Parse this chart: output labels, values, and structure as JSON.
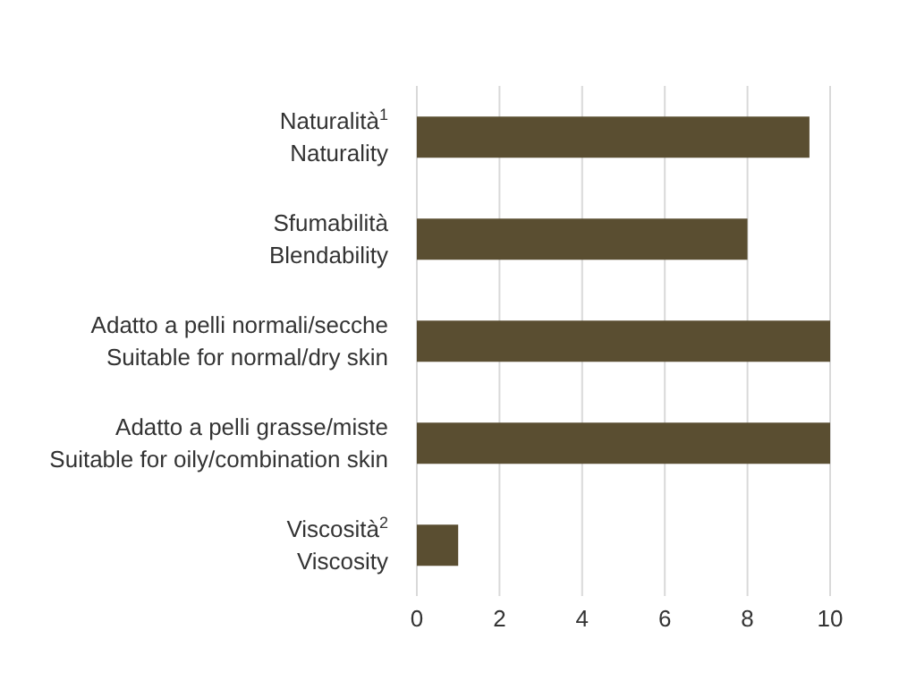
{
  "chart_data": {
    "type": "bar",
    "orientation": "horizontal",
    "categories": [
      "Naturalità$^{1}$\nNaturality",
      "Sfumabilità\nBlendability",
      "Adatto a pelli normali/secche\nSuitable for normal/dry skin",
      "Adatto a pelli grasse/miste\nSuitable for oily/combination skin",
      "Viscosità$^{2}$\nViscosity"
    ],
    "values": [
      9.5,
      8,
      10,
      10,
      1
    ],
    "color": "#5a4e31",
    "xlim": [
      0,
      10
    ],
    "xticks": [
      0,
      2,
      4,
      6,
      8,
      10
    ],
    "grid": "x"
  }
}
